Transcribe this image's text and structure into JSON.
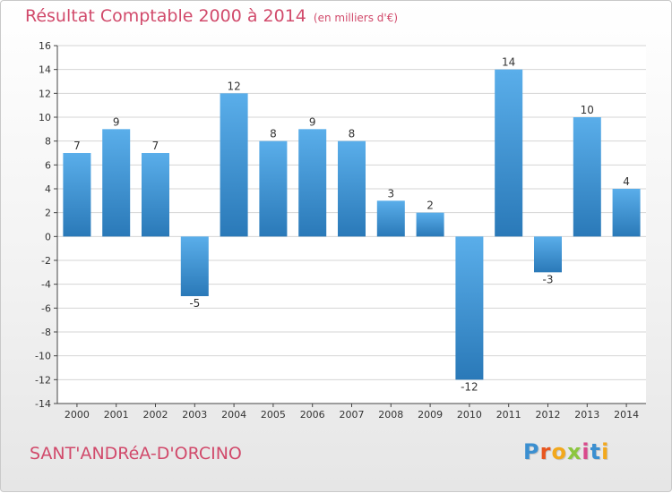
{
  "header": {
    "title": "Résultat Comptable 2000 à 2014",
    "subtitle": "(en milliers d'€)"
  },
  "footer": {
    "commune": "SANT'ANDRéA-D'ORCINO",
    "brand": "Proxiti",
    "brand_colors": [
      "#3b8fd0",
      "#e8561f",
      "#f2a81d",
      "#8cc63f",
      "#d94a8c",
      "#3b8fd0",
      "#f2a81d"
    ]
  },
  "colors": {
    "bar_top": "#5aaeea",
    "bar_bottom": "#2a79b8",
    "title": "#d14a6b",
    "axis": "#444444",
    "grid": "#d5d5d5"
  },
  "chart_data": {
    "type": "bar",
    "categories": [
      "2000",
      "2001",
      "2002",
      "2003",
      "2004",
      "2005",
      "2006",
      "2007",
      "2008",
      "2009",
      "2010",
      "2011",
      "2012",
      "2013",
      "2014"
    ],
    "values": [
      7,
      9,
      7,
      -5,
      12,
      8,
      9,
      8,
      3,
      2,
      -12,
      14,
      -3,
      10,
      4
    ],
    "ylim": [
      -14,
      16
    ],
    "ytick_step": 2,
    "grid": true,
    "legend": "none"
  }
}
